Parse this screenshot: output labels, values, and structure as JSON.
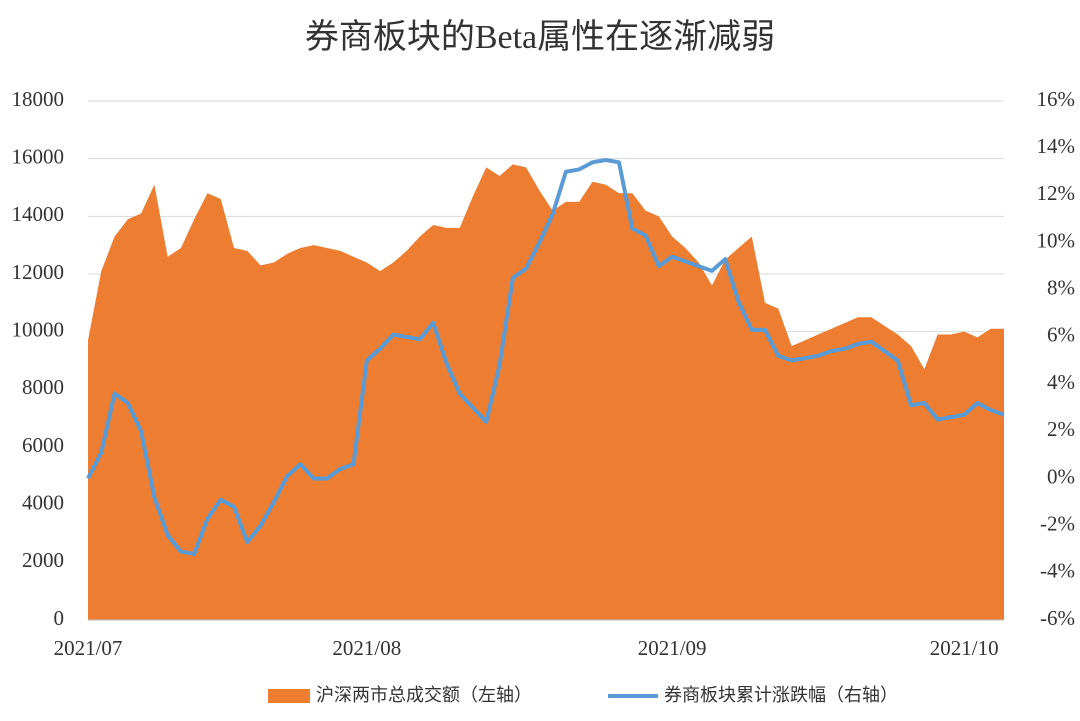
{
  "chart_data": {
    "type": "combo",
    "title": "券商板块的Beta属性在逐渐减弱",
    "categories": [
      "2021/07",
      null,
      null,
      null,
      null,
      null,
      null,
      null,
      null,
      null,
      null,
      null,
      null,
      null,
      null,
      null,
      null,
      null,
      null,
      null,
      null,
      "2021/08",
      null,
      null,
      null,
      null,
      null,
      null,
      null,
      null,
      null,
      null,
      null,
      null,
      null,
      null,
      null,
      null,
      null,
      null,
      null,
      null,
      null,
      null,
      "2021/09",
      null,
      null,
      null,
      null,
      null,
      null,
      null,
      null,
      null,
      null,
      null,
      null,
      null,
      null,
      null,
      null,
      null,
      null,
      null,
      null,
      null,
      "2021/10",
      null,
      null,
      null
    ],
    "series": [
      {
        "name": "沪深两市总成交额（左轴）",
        "type": "area",
        "color": "#ed7d31",
        "values": [
          9700,
          12100,
          13300,
          13900,
          14100,
          15100,
          12600,
          12900,
          13900,
          14800,
          14600,
          12900,
          12800,
          12300,
          12400,
          12700,
          12900,
          13000,
          12900,
          12800,
          12600,
          12400,
          12100,
          12400,
          12800,
          13300,
          13700,
          13600,
          13600,
          14700,
          15700,
          15400,
          15800,
          15700,
          14900,
          14200,
          14500,
          14500,
          15200,
          15100,
          14800,
          14800,
          14200,
          14000,
          13300,
          12900,
          12400,
          11600,
          12500,
          12900,
          13300,
          11000,
          10800,
          9500,
          9700,
          9900,
          10100,
          10300,
          10500,
          10500,
          10200,
          9900,
          9500,
          8700,
          9900,
          9900,
          10000,
          9800,
          10100,
          10100
        ]
      },
      {
        "name": "券商板块累计涨跌幅（右轴）",
        "type": "line",
        "axis": "y2",
        "color": "#5b9bd5",
        "values": [
          0,
          1.1,
          3.6,
          3.2,
          2.0,
          -0.8,
          -2.4,
          -3.1,
          -3.2,
          -1.7,
          -0.9,
          -1.2,
          -2.7,
          -2.0,
          -1.0,
          0.1,
          0.6,
          0.0,
          0.0,
          0.4,
          0.6,
          5.0,
          5.5,
          6.1,
          6.0,
          5.9,
          6.6,
          4.9,
          3.6,
          3.0,
          2.4,
          4.8,
          8.5,
          8.9,
          10.0,
          11.2,
          13.0,
          13.1,
          13.4,
          13.5,
          13.4,
          10.6,
          10.3,
          9.0,
          9.4,
          9.2,
          9.0,
          8.8,
          9.3,
          7.5,
          6.3,
          6.3,
          5.2,
          5.0,
          5.1,
          5.2,
          5.4,
          5.5,
          5.7,
          5.8,
          5.4,
          5.0,
          3.1,
          3.2,
          2.5,
          2.6,
          2.7,
          3.2,
          2.9,
          2.7
        ]
      }
    ],
    "ylim": [
      0,
      18000
    ],
    "yticks": [
      0,
      2000,
      4000,
      6000,
      8000,
      10000,
      12000,
      14000,
      16000,
      18000
    ],
    "y2lim": [
      -6,
      16
    ],
    "y2ticks": [
      {
        "value": -6,
        "label": "-6%"
      },
      {
        "value": -4,
        "label": "-4%"
      },
      {
        "value": -2,
        "label": "-2%"
      },
      {
        "value": 0,
        "label": "0%"
      },
      {
        "value": 2,
        "label": "2%"
      },
      {
        "value": 4,
        "label": "4%"
      },
      {
        "value": 6,
        "label": "6%"
      },
      {
        "value": 8,
        "label": "8%"
      },
      {
        "value": 10,
        "label": "10%"
      },
      {
        "value": 12,
        "label": "12%"
      },
      {
        "value": 14,
        "label": "14%"
      },
      {
        "value": 16,
        "label": "16%"
      }
    ],
    "grid": true,
    "legend": "bottom"
  }
}
